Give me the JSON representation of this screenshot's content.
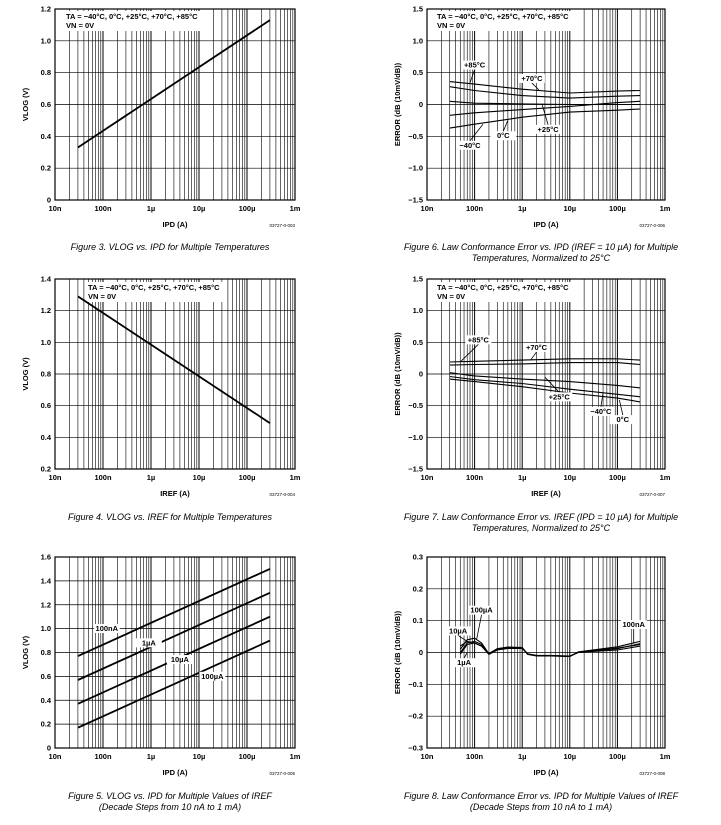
{
  "chart_data": [
    {
      "id": "fig3",
      "type": "line",
      "caption": "Figure 3. VLOG vs. IPD for Multiple Temperatures",
      "ref": "03727-0-003",
      "condition1": "TA = −40°C, 0°C, +25°C, +70°C, +85°C",
      "condition2": "VN = 0V",
      "xlabel": "IPD (A)",
      "ylabel": "VLOG (V)",
      "xscale": "log",
      "xlim": [
        1e-08,
        0.001
      ],
      "xticks": [
        1e-08,
        1e-07,
        1e-06,
        1e-05,
        0.0001,
        0.001
      ],
      "xticklabels": [
        "10n",
        "100n",
        "1µ",
        "10µ",
        "100µ",
        "1m"
      ],
      "ylim": [
        0,
        1.2
      ],
      "yticks": [
        0,
        0.2,
        0.4,
        0.6,
        0.8,
        1.0,
        1.2
      ],
      "yticklabels": [
        "0",
        "0.2",
        "0.4",
        "0.6",
        "0.8",
        "1.0",
        "1.2"
      ],
      "grid": true,
      "series": [
        {
          "x": [
            3e-08,
            0.0003
          ],
          "y": [
            0.33,
            1.13
          ]
        }
      ],
      "annotations": []
    },
    {
      "id": "fig6",
      "type": "line",
      "caption": "Figure 6. Law Conformance Error vs. IPD (IREF = 10 µA) for Multiple Temperatures, Normalized to 25°C",
      "ref": "03727-0-006",
      "condition1": "TA = −40°C, 0°C, +25°C, +70°C, +85°C",
      "condition2": "VN = 0V",
      "xlabel": "IPD (A)",
      "ylabel": "ERROR (dB (10mV/dB))",
      "xscale": "log",
      "xlim": [
        1e-08,
        0.001
      ],
      "xticks": [
        1e-08,
        1e-07,
        1e-06,
        1e-05,
        0.0001,
        0.001
      ],
      "xticklabels": [
        "10n",
        "100n",
        "1µ",
        "10µ",
        "100µ",
        "1m"
      ],
      "ylim": [
        -1.5,
        1.5
      ],
      "yticks": [
        -1.5,
        -1.0,
        -0.5,
        0,
        0.5,
        1.0,
        1.5
      ],
      "yticklabels": [
        "−1.5",
        "−1.0",
        "−0.5",
        "0",
        "0.5",
        "1.0",
        "1.5"
      ],
      "grid": true,
      "series": [
        {
          "x": [
            3e-08,
            1e-07,
            1e-06,
            1e-05,
            0.0001,
            0.0003
          ],
          "y": [
            0.36,
            0.32,
            0.24,
            0.18,
            0.21,
            0.22
          ]
        },
        {
          "x": [
            3e-08,
            1e-07,
            1e-06,
            1e-05,
            0.0001,
            0.0003
          ],
          "y": [
            0.28,
            0.22,
            0.14,
            0.1,
            0.13,
            0.14
          ]
        },
        {
          "x": [
            3e-08,
            1e-07,
            1e-06,
            1e-05,
            0.0001,
            0.0003
          ],
          "y": [
            0.05,
            0.02,
            0.01,
            0.0,
            0.0,
            0.0
          ]
        },
        {
          "x": [
            3e-08,
            1e-07,
            1e-06,
            1e-05,
            0.0001,
            0.0003
          ],
          "y": [
            -0.17,
            -0.13,
            -0.08,
            -0.03,
            0.03,
            0.05
          ]
        },
        {
          "x": [
            3e-08,
            1e-07,
            1e-06,
            1e-05,
            0.0001,
            0.0003
          ],
          "y": [
            -0.37,
            -0.31,
            -0.2,
            -0.12,
            -0.09,
            -0.07
          ]
        }
      ],
      "annotations": [
        {
          "text": "+85°C",
          "x": 1e-07,
          "y": 0.58,
          "ax": 8e-08,
          "ay": 0.34
        },
        {
          "text": "+70°C",
          "x": 1.6e-06,
          "y": 0.37,
          "ax": 2.3e-06,
          "ay": 0.22
        },
        {
          "text": "+25°C",
          "x": 3.5e-06,
          "y": -0.43,
          "ax": 2.6e-06,
          "ay": 0.01
        },
        {
          "text": "0°C",
          "x": 4e-07,
          "y": -0.53,
          "ax": 5e-07,
          "ay": -0.25
        },
        {
          "text": "−40°C",
          "x": 8e-08,
          "y": -0.68,
          "ax": 1.5e-07,
          "ay": -0.31
        }
      ]
    },
    {
      "id": "fig4",
      "type": "line",
      "caption": "Figure 4. VLOG vs. IREF for Multiple Temperatures",
      "ref": "03727-0-004",
      "condition1": "TA = −40°C, 0°C, +25°C, +70°C, +85°C",
      "condition2": "VN = 0V",
      "xlabel": "IREF (A)",
      "ylabel": "VLOG (V)",
      "xscale": "log",
      "xlim": [
        1e-08,
        0.001
      ],
      "xticks": [
        1e-08,
        1e-07,
        1e-06,
        1e-05,
        0.0001,
        0.001
      ],
      "xticklabels": [
        "10n",
        "100n",
        "1µ",
        "10µ",
        "100µ",
        "1m"
      ],
      "ylim": [
        0.2,
        1.4
      ],
      "yticks": [
        0.2,
        0.4,
        0.6,
        0.8,
        1.0,
        1.2,
        1.4
      ],
      "yticklabels": [
        "0.2",
        "0.4",
        "0.6",
        "0.8",
        "1.0",
        "1.2",
        "1.4"
      ],
      "grid": true,
      "series": [
        {
          "x": [
            3e-08,
            0.0003
          ],
          "y": [
            1.29,
            0.49
          ]
        }
      ],
      "annotations": []
    },
    {
      "id": "fig7",
      "type": "line",
      "caption": "Figure 7. Law Conformance Error vs. IREF (IPD = 10 µA) for Multiple Temperatures, Normalized to 25°C",
      "ref": "03727-0-007",
      "condition1": "TA = −40°C, 0°C, +25°C, +70°C, +85°C",
      "condition2": "VN = 0V",
      "xlabel": "IREF (A)",
      "ylabel": "ERROR (dB (10mV/dB))",
      "xscale": "log",
      "xlim": [
        1e-08,
        0.001
      ],
      "xticks": [
        1e-08,
        1e-07,
        1e-06,
        1e-05,
        0.0001,
        0.001
      ],
      "xticklabels": [
        "10n",
        "100n",
        "1µ",
        "10µ",
        "100µ",
        "1m"
      ],
      "ylim": [
        -1.5,
        1.5
      ],
      "yticks": [
        -1.5,
        -1.0,
        -0.5,
        0,
        0.5,
        1.0,
        1.5
      ],
      "yticklabels": [
        "−1.5",
        "−1.0",
        "−0.5",
        "0",
        "0.5",
        "1.0",
        "1.5"
      ],
      "grid": true,
      "series": [
        {
          "x": [
            3e-08,
            1e-07,
            1e-06,
            1e-05,
            0.0001,
            0.0003
          ],
          "y": [
            0.19,
            0.2,
            0.22,
            0.24,
            0.24,
            0.22
          ]
        },
        {
          "x": [
            3e-08,
            1e-07,
            1e-06,
            1e-05,
            0.0001,
            0.0003
          ],
          "y": [
            0.14,
            0.15,
            0.16,
            0.18,
            0.18,
            0.15
          ]
        },
        {
          "x": [
            3e-08,
            1e-07,
            1e-06,
            1e-05,
            0.0001,
            0.0003
          ],
          "y": [
            0.02,
            -0.03,
            -0.08,
            -0.12,
            -0.18,
            -0.22
          ]
        },
        {
          "x": [
            3e-08,
            1e-07,
            1e-06,
            1e-05,
            0.0001,
            0.0003
          ],
          "y": [
            -0.04,
            -0.09,
            -0.15,
            -0.24,
            -0.32,
            -0.36
          ]
        },
        {
          "x": [
            3e-08,
            1e-07,
            1e-06,
            1e-05,
            0.0001,
            0.0003
          ],
          "y": [
            -0.08,
            -0.12,
            -0.2,
            -0.3,
            -0.38,
            -0.44
          ]
        }
      ],
      "annotations": [
        {
          "text": "+85°C",
          "x": 1.2e-07,
          "y": 0.5,
          "ax": 5e-08,
          "ay": 0.19
        },
        {
          "text": "+70°C",
          "x": 2e-06,
          "y": 0.38,
          "ax": 1.5e-06,
          "ay": 0.22
        },
        {
          "text": "+25°C",
          "x": 6e-06,
          "y": -0.4,
          "ax": 3e-06,
          "ay": -0.05
        },
        {
          "text": "−40°C",
          "x": 4.5e-05,
          "y": -0.63,
          "ax": 5e-05,
          "ay": -0.3
        },
        {
          "text": "0°C",
          "x": 0.00013,
          "y": -0.76,
          "ax": 0.00011,
          "ay": -0.41
        }
      ]
    },
    {
      "id": "fig5",
      "type": "line",
      "caption": "Figure 5. VLOG vs. IPD for Multiple Values of IREF",
      "caption2": "(Decade Steps from 10 nA to 1 mA)",
      "ref": "03727-0-005",
      "xlabel": "IPD (A)",
      "ylabel": "VLOG (V)",
      "xscale": "log",
      "xlim": [
        1e-08,
        0.001
      ],
      "xticks": [
        1e-08,
        1e-07,
        1e-06,
        1e-05,
        0.0001,
        0.001
      ],
      "xticklabels": [
        "10n",
        "100n",
        "1µ",
        "10µ",
        "100µ",
        "1m"
      ],
      "ylim": [
        0,
        1.6
      ],
      "yticks": [
        0,
        0.2,
        0.4,
        0.6,
        0.8,
        1.0,
        1.2,
        1.4,
        1.6
      ],
      "yticklabels": [
        "0",
        "0.2",
        "0.4",
        "0.6",
        "0.8",
        "1.0",
        "1.2",
        "1.4",
        "1.6"
      ],
      "grid": true,
      "series": [
        {
          "name": "100nA",
          "x": [
            3e-08,
            0.0003
          ],
          "y": [
            0.77,
            1.5
          ]
        },
        {
          "name": "1µA",
          "x": [
            3e-08,
            0.0003
          ],
          "y": [
            0.57,
            1.3
          ]
        },
        {
          "name": "10µA",
          "x": [
            3e-08,
            0.0003
          ],
          "y": [
            0.37,
            1.1
          ]
        },
        {
          "name": "100µA",
          "x": [
            3e-08,
            0.0003
          ],
          "y": [
            0.17,
            0.9
          ]
        }
      ],
      "annotations": [
        {
          "text": "100nA",
          "x": 1.2e-07,
          "y": 0.98
        },
        {
          "text": "1µA",
          "x": 9e-07,
          "y": 0.86
        },
        {
          "text": "10µA",
          "x": 4e-06,
          "y": 0.72
        },
        {
          "text": "100µA",
          "x": 1.9e-05,
          "y": 0.58
        }
      ]
    },
    {
      "id": "fig8",
      "type": "line",
      "caption": "Figure 8. Law Conformance Error vs. IPD for Multiple Values of IREF",
      "caption2": "(Decade Steps from 10 nA to 1 mA)",
      "ref": "03727-0-008",
      "xlabel": "IPD (A)",
      "ylabel": "ERROR (dB (10mV/dB))",
      "xscale": "log",
      "xlim": [
        1e-08,
        0.001
      ],
      "xticks": [
        1e-08,
        1e-07,
        1e-06,
        1e-05,
        0.0001,
        0.001
      ],
      "xticklabels": [
        "10n",
        "100n",
        "1µ",
        "10µ",
        "100µ",
        "1m"
      ],
      "ylim": [
        -0.3,
        0.3
      ],
      "yticks": [
        -0.3,
        -0.2,
        -0.1,
        0,
        0.1,
        0.2,
        0.3
      ],
      "yticklabels": [
        "−0.3",
        "−0.2",
        "−0.1",
        "0",
        "0.1",
        "0.2",
        "0.3"
      ],
      "grid": true,
      "series": [
        {
          "x": [
            5e-08,
            7e-08,
            1e-07,
            1.4e-07,
            2e-07,
            3e-07,
            5e-07,
            1e-06,
            1.3e-06,
            2e-06,
            4e-06,
            1e-05,
            1.5e-05,
            3e-05,
            0.0001,
            0.0003
          ],
          "y": [
            0.0,
            0.03,
            0.035,
            0.025,
            -0.005,
            0.01,
            0.015,
            0.015,
            -0.005,
            -0.01,
            -0.01,
            -0.012,
            0.0,
            0.005,
            0.012,
            0.028
          ]
        },
        {
          "x": [
            5e-08,
            7e-08,
            1e-07,
            1.4e-07,
            2e-07,
            3e-07,
            5e-07,
            1e-06,
            1.3e-06,
            2e-06,
            4e-06,
            1e-05,
            1.5e-05,
            3e-05,
            0.0001,
            0.0003
          ],
          "y": [
            0.02,
            0.035,
            0.03,
            0.02,
            -0.003,
            0.012,
            0.017,
            0.015,
            -0.006,
            -0.011,
            -0.011,
            -0.013,
            0.002,
            0.008,
            0.018,
            0.035
          ]
        },
        {
          "x": [
            5e-08,
            7e-08,
            1e-07,
            1.4e-07,
            2e-07,
            3e-07,
            5e-07,
            1e-06,
            1.3e-06,
            2e-06,
            4e-06,
            1e-05,
            1.5e-05,
            3e-05,
            0.0001,
            0.0003
          ],
          "y": [
            -0.005,
            0.025,
            0.03,
            0.02,
            -0.006,
            0.008,
            0.013,
            0.013,
            -0.004,
            -0.009,
            -0.009,
            -0.011,
            0.0,
            0.003,
            0.008,
            0.02
          ]
        },
        {
          "x": [
            5e-08,
            7e-08,
            1e-07,
            1.4e-07,
            2e-07,
            3e-07,
            5e-07,
            1e-06,
            1.3e-06,
            2e-06,
            4e-06,
            1e-05,
            1.5e-05,
            3e-05,
            0.0001,
            0.0003
          ],
          "y": [
            0.01,
            0.04,
            0.045,
            0.03,
            -0.004,
            0.011,
            0.016,
            0.016,
            -0.005,
            -0.01,
            -0.01,
            -0.012,
            0.001,
            0.006,
            0.014,
            0.025
          ]
        }
      ],
      "annotations": [
        {
          "text": "100µA",
          "x": 1.4e-07,
          "y": 0.125,
          "ax": 1.1e-07,
          "ay": 0.04
        },
        {
          "text": "10µA",
          "x": 4.5e-08,
          "y": 0.06,
          "ax": 7e-08,
          "ay": 0.035
        },
        {
          "text": "1µA",
          "x": 6e-08,
          "y": -0.04,
          "ax": 7e-08,
          "ay": 0.0
        },
        {
          "text": "100nA",
          "x": 0.00022,
          "y": 0.08,
          "ax": 0.00022,
          "ay": 0.03
        }
      ]
    }
  ]
}
